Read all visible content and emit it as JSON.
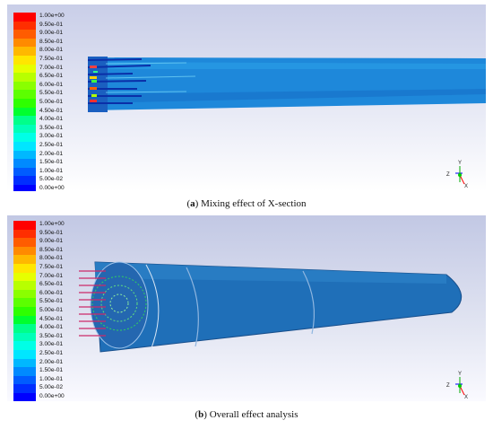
{
  "legend_labels": [
    "1.00e+00",
    "9.50e-01",
    "9.00e-01",
    "8.50e-01",
    "8.00e-01",
    "7.50e-01",
    "7.00e-01",
    "6.50e-01",
    "6.00e-01",
    "5.50e-01",
    "5.00e-01",
    "4.50e-01",
    "4.00e-01",
    "3.50e-01",
    "3.00e-01",
    "2.50e-01",
    "2.00e-01",
    "1.50e-01",
    "1.00e-01",
    "5.00e-02",
    "0.00e+00"
  ],
  "legend_colors": [
    "#ff0000",
    "#ff2e00",
    "#ff5c00",
    "#ff8a00",
    "#ffb800",
    "#ffe600",
    "#e6ff00",
    "#b8ff00",
    "#8aff00",
    "#5cff00",
    "#2eff00",
    "#00ff2e",
    "#00ff8a",
    "#00ffb8",
    "#00ffe6",
    "#00e6ff",
    "#00b8ff",
    "#008aff",
    "#005cff",
    "#002eff",
    "#0000ff"
  ],
  "panel_a": {
    "caption_letter": "a",
    "caption_text": " Mixing effect of X-section"
  },
  "panel_b": {
    "caption_letter": "b",
    "caption_text": " Overall effect analysis"
  },
  "triad": {
    "x_label": "X",
    "y_label": "Y",
    "z_label": "Z"
  },
  "colors": {
    "flow": "#1f86d8",
    "flow_dark": "#1366c4",
    "shell": "#2a6fb3"
  }
}
